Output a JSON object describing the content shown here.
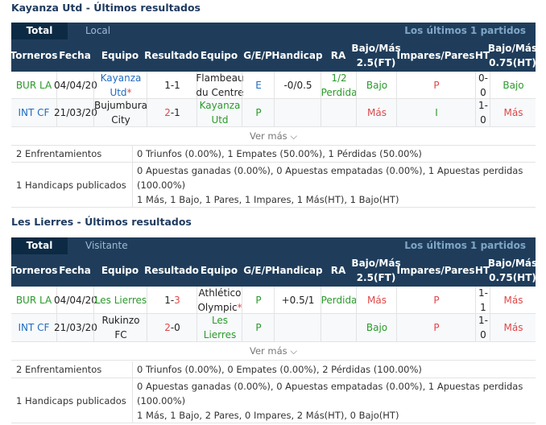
{
  "sections": [
    {
      "title": "Kayanza Utd - Últimos resultados",
      "tab_total": "Total",
      "tab_other": "Local",
      "tab_right": "Los últimos 1 partidos",
      "headers": [
        "Torneros",
        "Fecha",
        "Equipo",
        "Resultado",
        "Equipo",
        "G/E/P",
        "Handicap",
        "RA",
        "Bajo/Más 2.5(FT)",
        "Impares/Pares",
        "HT",
        "Bajo/Más 0.75(HT)"
      ],
      "rows": [
        {
          "league": "BUR LA",
          "date": "04/04/20",
          "home": "Kayanza Utd",
          "home_star": "*",
          "score_home": "1",
          "score_away": "1",
          "away": "Flambeau du Centre",
          "away_star": "",
          "gep": "E",
          "handicap": "-0/0.5",
          "ra": "1/2 Perdida",
          "bm": "Bajo",
          "ip": "P",
          "ht": "0-0",
          "bm_ht": "Bajo"
        },
        {
          "league": "INT CF",
          "date": "21/03/20",
          "home": "Bujumbura City",
          "home_star": "",
          "score_home": "2",
          "score_away": "1",
          "away": "Kayanza Utd",
          "away_star": "",
          "gep": "P",
          "handicap": "",
          "ra": "",
          "bm": "Más",
          "ip": "I",
          "ht": "1-0",
          "bm_ht": "Más"
        }
      ],
      "ver_mas": "Ver más",
      "enfrent_label": "2 Enfrentamientos",
      "enfrent_text": [
        "0 Triunfos (0.00%), 1 Empates (50.00%), 1 Pérdidas (50.00%)"
      ],
      "handicap_label": "1 Handicaps publicados",
      "handicap_text": [
        "0 Apuestas ganadas (0.00%), 0 Apuestas empatadas (0.00%), 1 Apuestas perdidas",
        "(100.00%)",
        "1 Más, 1 Bajo, 1 Pares, 1 Impares, 1 Más(HT), 1 Bajo(HT)"
      ]
    },
    {
      "title": "Les Lierres - Últimos resultados",
      "tab_total": "Total",
      "tab_other": "Visitante",
      "tab_right": "Los últimos 1 partidos",
      "headers": [
        "Torneros",
        "Fecha",
        "Equipo",
        "Resultado",
        "Equipo",
        "G/E/P",
        "Handicap",
        "RA",
        "Bajo/Más 2.5(FT)",
        "Impares/Pares",
        "HT",
        "Bajo/Más 0.75(HT)"
      ],
      "rows": [
        {
          "league": "BUR LA",
          "date": "04/04/20",
          "home": "Les Lierres",
          "home_star": "",
          "score_home": "1",
          "score_away": "3",
          "away": "Athlético Olympic",
          "away_star": "*",
          "gep": "P",
          "handicap": "+0.5/1",
          "ra": "Perdida",
          "bm": "Más",
          "ip": "P",
          "ht": "1-1",
          "bm_ht": "Más"
        },
        {
          "league": "INT CF",
          "date": "21/03/20",
          "home": "Rukinzo FC",
          "home_star": "",
          "score_home": "2",
          "score_away": "0",
          "away": "Les Lierres",
          "away_star": "",
          "gep": "P",
          "handicap": "",
          "ra": "",
          "bm": "Bajo",
          "ip": "P",
          "ht": "1-0",
          "bm_ht": "Más"
        }
      ],
      "ver_mas": "Ver más",
      "enfrent_label": "2 Enfrentamientos",
      "enfrent_text": [
        "0 Triunfos (0.00%), 0 Empates (0.00%), 2 Pérdidas (100.00%)"
      ],
      "handicap_label": "1 Handicaps publicados",
      "handicap_text": [
        "0 Apuestas ganadas (0.00%), 0 Apuestas empatadas (0.00%), 1 Apuestas perdidas",
        "(100.00%)",
        "1 Más, 1 Bajo, 2 Pares, 0 Impares, 2 Más(HT), 0 Bajo(HT)"
      ]
    }
  ],
  "colors": {
    "header_bg": "#1f3d5b",
    "tab_active": "#0d2a44",
    "blue": "#1f6bbf",
    "green": "#2b9a2b",
    "red": "#e04848"
  }
}
